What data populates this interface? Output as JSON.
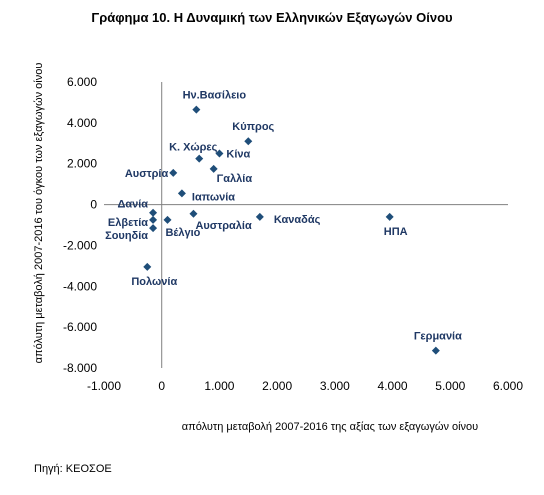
{
  "chart_data": {
    "type": "scatter",
    "title": "Γράφημα 10. Η Δυναμική των Ελληνικών Εξαγωγών Οίνου",
    "xlabel": "απόλυτη μεταβολή 2007-2016 της αξίας των εξαγωγών οίνου",
    "ylabel": "απόλυτη μεταβολή 2007-2016 του όγκου των εξαγωγών οίνου",
    "xlim": [
      -1000,
      6000
    ],
    "ylim": [
      -8000,
      6000
    ],
    "xticks": [
      "-1.000",
      "0",
      "1.000",
      "2.000",
      "3.000",
      "4.000",
      "5.000",
      "6.000"
    ],
    "yticks": [
      "6.000",
      "4.000",
      "2.000",
      "0",
      "-2.000",
      "-4.000",
      "-6.000",
      "-8.000"
    ],
    "grid": false,
    "marker_color": "#1f4e79",
    "points": [
      {
        "label": "Ην.Βασίλειο",
        "x": 600,
        "y": 4650
      },
      {
        "label": "Κύπρος",
        "x": 1500,
        "y": 3100
      },
      {
        "label": "Κίνα",
        "x": 1000,
        "y": 2500
      },
      {
        "label": "Κ. Χώρες",
        "x": 650,
        "y": 2250
      },
      {
        "label": "Γαλλία",
        "x": 900,
        "y": 1750
      },
      {
        "label": "Αυστρία",
        "x": 200,
        "y": 1550
      },
      {
        "label": "Ιαπωνία",
        "x": 350,
        "y": 550
      },
      {
        "label": "Δανία",
        "x": -150,
        "y": -400
      },
      {
        "label": "Ελβετία",
        "x": -150,
        "y": -750
      },
      {
        "label": "Σουηδία",
        "x": -150,
        "y": -1150
      },
      {
        "label": "Βέλγιο",
        "x": 100,
        "y": -750
      },
      {
        "label": "Αυστραλία",
        "x": 550,
        "y": -450
      },
      {
        "label": "Καναδάς",
        "x": 1700,
        "y": -600
      },
      {
        "label": "ΗΠΑ",
        "x": 3950,
        "y": -600
      },
      {
        "label": "Πολωνία",
        "x": -250,
        "y": -3050
      },
      {
        "label": "Γερμανία",
        "x": 4750,
        "y": -7150
      }
    ]
  },
  "source": "Πηγή: ΚΕΟΣΟΕ"
}
